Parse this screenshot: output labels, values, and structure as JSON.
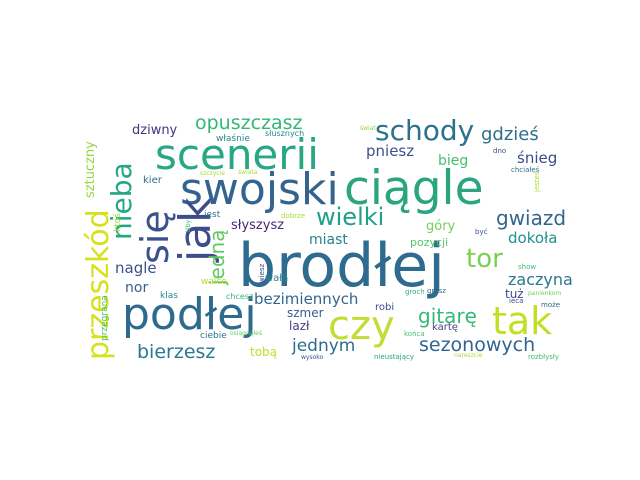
{
  "words": [
    {
      "text": "brodłej",
      "color": "#2f6b8e"
    },
    {
      "text": "ciągle",
      "color": "#2aa57f"
    },
    {
      "text": "swojski",
      "color": "#34648d"
    },
    {
      "text": "scenerii",
      "color": "#27a882"
    },
    {
      "text": "podłej",
      "color": "#2e6a8e"
    },
    {
      "text": "jak",
      "color": "#3e4c8a"
    },
    {
      "text": "się",
      "color": "#3b518b"
    },
    {
      "text": "czy",
      "color": "#c3dd35"
    },
    {
      "text": "tak",
      "color": "#c2df23"
    },
    {
      "text": "przeszkód",
      "color": "#d5e21a"
    },
    {
      "text": "nieba",
      "color": "#22a785"
    },
    {
      "text": "schody",
      "color": "#2c728e"
    },
    {
      "text": "wielki",
      "color": "#1fa088"
    },
    {
      "text": "tor",
      "color": "#7ad151"
    },
    {
      "text": "jedną",
      "color": "#60ca60"
    },
    {
      "text": "gitarę",
      "color": "#37b878"
    },
    {
      "text": "gwiazd",
      "color": "#31668e"
    },
    {
      "text": "sezonowych",
      "color": "#32648e"
    },
    {
      "text": "bierzesz",
      "color": "#2a788e"
    },
    {
      "text": "opuszczasz",
      "color": "#34b679"
    },
    {
      "text": "gdzieś",
      "color": "#2d708e"
    },
    {
      "text": "jednym",
      "color": "#2f6c8e"
    },
    {
      "text": "bezimiennych",
      "color": "#32658e"
    },
    {
      "text": "zaczyna",
      "color": "#2a778e"
    },
    {
      "text": "dokoła",
      "color": "#21918c"
    },
    {
      "text": "pniesz",
      "color": "#3b528b"
    },
    {
      "text": "śnieg",
      "color": "#3e4a89"
    },
    {
      "text": "nagle",
      "color": "#3b518b"
    },
    {
      "text": "miast",
      "color": "#26828e"
    },
    {
      "text": "nor",
      "color": "#355f8d"
    },
    {
      "text": "bieg",
      "color": "#44bf70"
    },
    {
      "text": "góry",
      "color": "#73d056"
    },
    {
      "text": "słyszysz",
      "color": "#482878"
    },
    {
      "text": "sztuczny",
      "color": "#95d840"
    },
    {
      "text": "dziwny",
      "color": "#46337f"
    },
    {
      "text": "tobą",
      "color": "#bddf26"
    },
    {
      "text": "lazł",
      "color": "#433d84"
    },
    {
      "text": "szmer",
      "color": "#365d8d"
    },
    {
      "text": "tuż",
      "color": "#3f4889"
    },
    {
      "text": "pozycji",
      "color": "#52c569"
    },
    {
      "text": "kartę",
      "color": "#414487"
    },
    {
      "text": "robi",
      "color": "#3e4c8a"
    },
    {
      "text": "wała",
      "color": "#26828e"
    },
    {
      "text": "kier",
      "color": "#31688e"
    },
    {
      "text": "jest",
      "color": "#2c728e"
    },
    {
      "text": "walce",
      "color": "#b5de2b"
    },
    {
      "text": "klas",
      "color": "#25858e"
    },
    {
      "text": "chcesz",
      "color": "#35b779"
    },
    {
      "text": "ciebie",
      "color": "#2c728e"
    },
    {
      "text": "właśnie",
      "color": "#23888e"
    },
    {
      "text": "słusznych",
      "color": "#24868e"
    },
    {
      "text": "ktoś",
      "color": "#9fda3a"
    },
    {
      "text": "przegrana",
      "color": "#4ac16d"
    },
    {
      "text": "świat",
      "color": "#86d549"
    },
    {
      "text": "dno",
      "color": "#3b528b"
    },
    {
      "text": "chciałeś",
      "color": "#2d708e"
    },
    {
      "text": "jesteś",
      "color": "#addc30"
    },
    {
      "text": "być",
      "color": "#38598c"
    },
    {
      "text": "dobrze",
      "color": "#a8db34"
    },
    {
      "text": "wiesz",
      "color": "#3e4a89"
    },
    {
      "text": "show",
      "color": "#3fbc73"
    },
    {
      "text": "panienkom",
      "color": "#70cf57"
    },
    {
      "text": "grasz",
      "color": "#2e6e8e"
    },
    {
      "text": "groch",
      "color": "#2ab07f"
    },
    {
      "text": "może",
      "color": "#31688e"
    },
    {
      "text": "ieca",
      "color": "#3d4d8a"
    },
    {
      "text": "nieustający",
      "color": "#21a685"
    },
    {
      "text": "nareszcie",
      "color": "#addc30"
    },
    {
      "text": "rozbłysły",
      "color": "#3fbc73"
    },
    {
      "text": "wysoko",
      "color": "#3b518b"
    },
    {
      "text": "końca",
      "color": "#46c06f"
    },
    {
      "text": "osiągnąłeś",
      "color": "#65cb5e"
    },
    {
      "text": "szczycie",
      "color": "#a2da37"
    },
    {
      "text": "iżby",
      "color": "#38b977"
    },
    {
      "text": "świata",
      "color": "#a8db34"
    }
  ]
}
